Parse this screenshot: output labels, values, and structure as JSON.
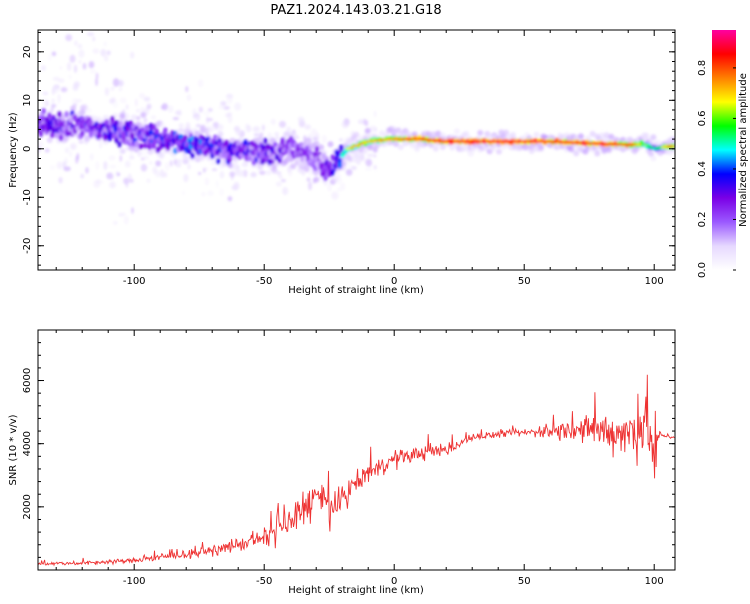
{
  "title": "PAZ1.2024.143.03.21.G18",
  "chart_data": [
    {
      "type": "heatmap",
      "xlabel": "Height of straight line (km)",
      "ylabel": "Frequency (Hz)",
      "xlim": [
        -137,
        108
      ],
      "ylim": [
        -25,
        24.5
      ],
      "xticks": [
        "-100",
        "-50",
        "0",
        "50",
        "100"
      ],
      "yticks": [
        "-20",
        "-10",
        "0",
        "10",
        "20"
      ],
      "colorbar": {
        "label": "Normalized spectral amplitude",
        "range": [
          0,
          0.95
        ],
        "ticks": [
          "0.0",
          "0.2",
          "0.4",
          "0.6",
          "0.8"
        ],
        "colors": [
          "#ffffff",
          "#e6d8ff",
          "#9b59ff",
          "#7a00e6",
          "#0000ff",
          "#00ffff",
          "#00ff00",
          "#ffff00",
          "#ff8000",
          "#ff0000",
          "#ff00a0"
        ]
      },
      "ridge": {
        "x": [
          -135,
          -120,
          -100,
          -80,
          -65,
          -50,
          -40,
          -30,
          -25,
          -22,
          -18,
          -10,
          0,
          10,
          20,
          40,
          60,
          80,
          92,
          96,
          100,
          105
        ],
        "freq": [
          5,
          4.5,
          3,
          1,
          0,
          -1,
          0,
          -2,
          -4,
          -3,
          0,
          1.5,
          2,
          2,
          1.5,
          1.5,
          1.5,
          1,
          0.8,
          1,
          0,
          0.5
        ],
        "amplitude": [
          0.3,
          0.3,
          0.35,
          0.4,
          0.35,
          0.3,
          0.28,
          0.25,
          0.3,
          0.45,
          0.55,
          0.6,
          0.65,
          0.7,
          0.75,
          0.8,
          0.75,
          0.75,
          0.7,
          0.5,
          0.35,
          0.6
        ]
      }
    },
    {
      "type": "line",
      "xlabel": "Height of straight line (km)",
      "ylabel": "SNR (10 * v/v)",
      "xlim": [
        -137,
        108
      ],
      "ylim": [
        0,
        7600
      ],
      "xticks": [
        "-100",
        "-50",
        "0",
        "50",
        "100"
      ],
      "yticks": [
        "2000",
        "4000",
        "6000"
      ],
      "series": [
        {
          "color": "#ee3333",
          "x": [
            -137,
            -120,
            -100,
            -80,
            -70,
            -60,
            -50,
            -40,
            -35,
            -30,
            -25,
            -22,
            -20,
            -15,
            -10,
            -5,
            0,
            10,
            20,
            25,
            30,
            40,
            50,
            60,
            70,
            80,
            90,
            95,
            98,
            100,
            102,
            108
          ],
          "y": [
            200,
            220,
            300,
            500,
            600,
            800,
            1000,
            1500,
            2000,
            2300,
            2000,
            1800,
            2300,
            2700,
            3100,
            3300,
            3500,
            3700,
            3800,
            4000,
            4200,
            4300,
            4350,
            4400,
            4450,
            4400,
            4350,
            4500,
            4800,
            3400,
            4300,
            4200
          ],
          "spread": [
            80,
            90,
            120,
            180,
            220,
            300,
            450,
            700,
            900,
            1000,
            1000,
            900,
            600,
            500,
            450,
            400,
            400,
            350,
            300,
            250,
            150,
            150,
            180,
            350,
            500,
            900,
            1100,
            1400,
            2000,
            1200,
            200,
            100
          ]
        }
      ]
    }
  ]
}
